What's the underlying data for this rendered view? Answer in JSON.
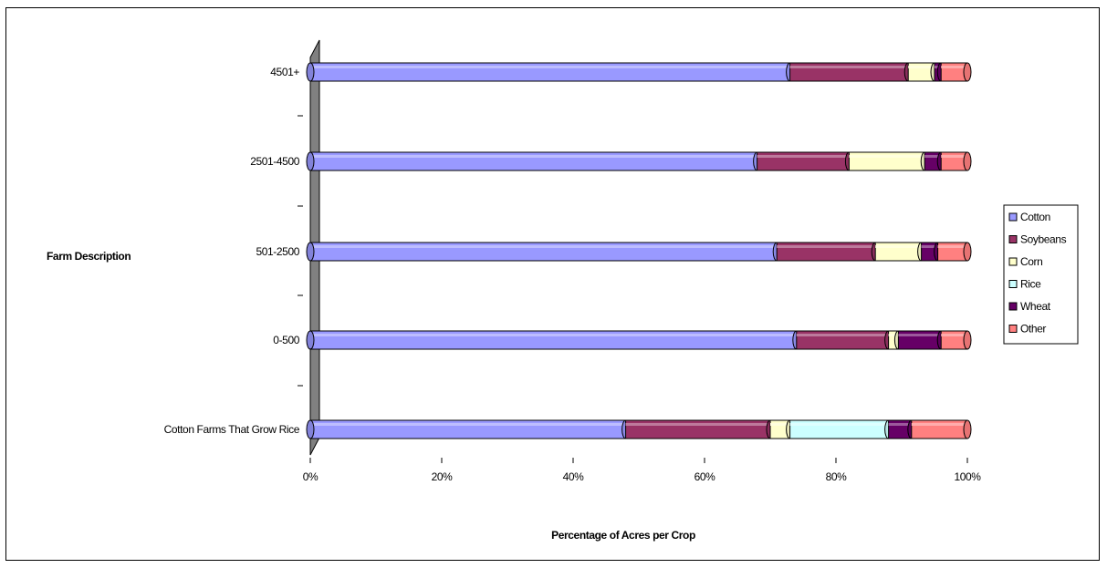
{
  "chart_data": {
    "type": "bar",
    "orientation": "horizontal",
    "stacked": "percent",
    "categories": [
      "Cotton Farms That Grow Rice",
      "0-500",
      "501-2500",
      "2501-4500",
      "4501+"
    ],
    "series": [
      {
        "name": "Cotton",
        "color": "#9999ff",
        "values": [
          48,
          74,
          71,
          68,
          73
        ]
      },
      {
        "name": "Soybeans",
        "color": "#993366",
        "values": [
          22,
          14,
          15,
          14,
          18
        ]
      },
      {
        "name": "Corn",
        "color": "#ffffcc",
        "values": [
          3,
          1.5,
          7,
          11.5,
          4
        ]
      },
      {
        "name": "Rice",
        "color": "#ccffff",
        "values": [
          15,
          0,
          0,
          0,
          0
        ]
      },
      {
        "name": "Wheat",
        "color": "#660066",
        "values": [
          3.5,
          6.5,
          2.5,
          2.5,
          1
        ]
      },
      {
        "name": "Other",
        "color": "#ff8080",
        "values": [
          8.5,
          4,
          4.5,
          4,
          4
        ]
      }
    ],
    "xlabel": "Percentage of Acres per Crop",
    "ylabel": "Farm Description",
    "xlim": [
      0,
      100
    ],
    "x_ticks": [
      "0%",
      "20%",
      "40%",
      "60%",
      "80%",
      "100%"
    ],
    "grid": false,
    "legend_position": "right"
  }
}
